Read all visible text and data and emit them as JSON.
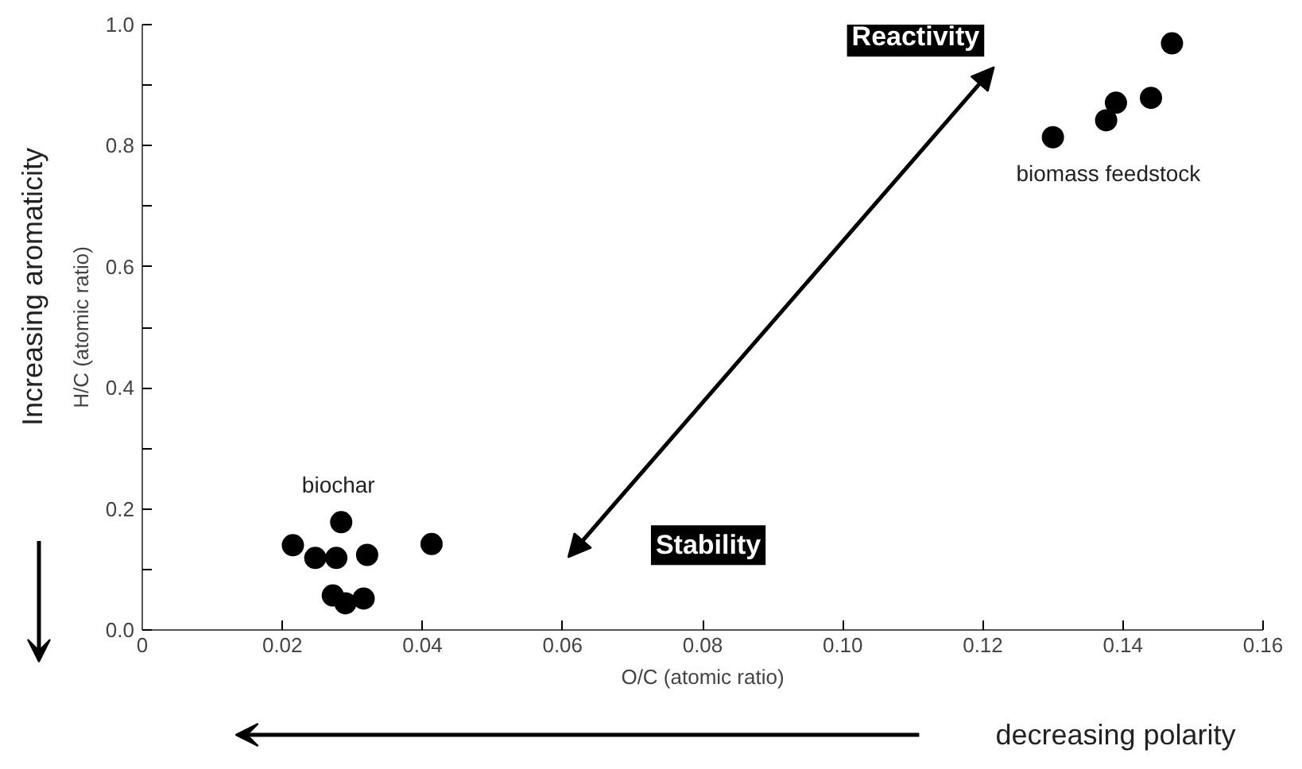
{
  "chart_data": {
    "type": "scatter",
    "xlabel": "O/C (atomic ratio)",
    "ylabel": "H/C (atomic ratio)",
    "xlim": [
      0,
      0.16
    ],
    "ylim": [
      0,
      1.0
    ],
    "xticks": [
      {
        "value": 0,
        "label": "0"
      },
      0.02,
      0.04,
      0.06,
      0.08,
      {
        "value": 0.1,
        "label": "0.10"
      },
      0.12,
      0.14,
      0.16
    ],
    "yticks": [
      {
        "value": 0,
        "label": "0.0"
      },
      {
        "value": 0.1,
        "label": null
      },
      0.2,
      {
        "value": 0.3,
        "label": null
      },
      0.4,
      {
        "value": 0.5,
        "label": null
      },
      0.6,
      {
        "value": 0.7,
        "label": null
      },
      0.8,
      {
        "value": 0.9,
        "label": null
      },
      {
        "value": 1.0,
        "label": "1.0"
      }
    ],
    "series": [
      {
        "color": "#000000",
        "x": [
          0.0284,
          0.0215,
          0.0247,
          0.0277,
          0.0321,
          0.0413,
          0.0272,
          0.029,
          0.0316
        ],
        "values": [
          0.178,
          0.14,
          0.119,
          0.119,
          0.124,
          0.142,
          0.057,
          0.044,
          0.052
        ]
      },
      {
        "color": "#000000",
        "x": [
          0.147,
          0.144,
          0.139,
          0.1376,
          0.13
        ],
        "values": [
          0.969,
          0.879,
          0.871,
          0.842,
          0.814
        ]
      }
    ],
    "marker": "circle",
    "grid": false,
    "annotations": [
      "Reactivity",
      "Stability",
      "biochar",
      "biomass feedstock",
      "Increasing aromaticity",
      "decreasing polarity"
    ]
  }
}
